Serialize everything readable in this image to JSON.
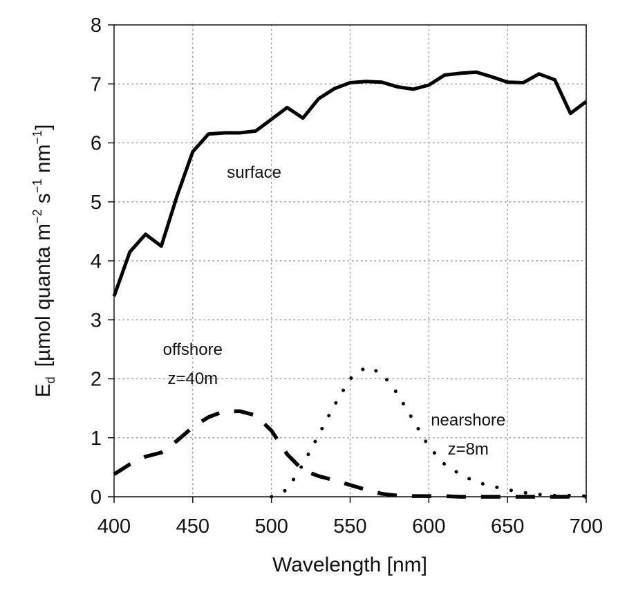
{
  "chart_data": {
    "type": "line",
    "xlabel": "Wavelength [nm]",
    "ylabel": {
      "symbol": "E",
      "subscript": "d",
      "unit_prefix": "[µmol quanta m",
      "exp_m": "−2",
      "unit_s": " s",
      "exp_s": "−1",
      "unit_nm": " nm",
      "exp_nm": "−1",
      "unit_close": "]"
    },
    "xlim": [
      400,
      700
    ],
    "ylim": [
      0,
      8
    ],
    "x_ticks": [
      400,
      450,
      500,
      550,
      600,
      650,
      700
    ],
    "y_ticks": [
      0,
      1,
      2,
      3,
      4,
      5,
      6,
      7,
      8
    ],
    "grid": true,
    "series": [
      {
        "name": "surface",
        "style": "solid",
        "x": [
          400,
          410,
          420,
          430,
          440,
          450,
          460,
          470,
          480,
          490,
          500,
          510,
          520,
          530,
          540,
          550,
          560,
          570,
          580,
          590,
          600,
          610,
          620,
          630,
          640,
          650,
          660,
          670,
          680,
          690,
          700
        ],
        "y": [
          3.4,
          4.15,
          4.45,
          4.25,
          5.1,
          5.85,
          6.15,
          6.17,
          6.17,
          6.2,
          6.4,
          6.6,
          6.42,
          6.75,
          6.92,
          7.02,
          7.04,
          7.03,
          6.95,
          6.91,
          6.98,
          7.15,
          7.18,
          7.2,
          7.12,
          7.03,
          7.02,
          7.17,
          7.07,
          6.5,
          6.7
        ]
      },
      {
        "name": "offshore z=40m",
        "style": "dashed",
        "x": [
          400,
          410,
          420,
          430,
          440,
          450,
          460,
          470,
          480,
          490,
          500,
          510,
          520,
          530,
          540,
          550,
          560,
          570,
          580,
          590,
          600,
          610,
          620,
          630,
          640,
          650,
          660,
          670,
          680,
          690,
          700
        ],
        "y": [
          0.38,
          0.55,
          0.68,
          0.75,
          0.95,
          1.18,
          1.35,
          1.45,
          1.45,
          1.38,
          1.12,
          0.72,
          0.45,
          0.35,
          0.28,
          0.2,
          0.12,
          0.05,
          0.02,
          0.01,
          0.01,
          0.01,
          0.0,
          0.0,
          0.0,
          0.0,
          0.0,
          0.0,
          0.0,
          0.0,
          0.0
        ]
      },
      {
        "name": "nearshore z=8m",
        "style": "dotted",
        "x": [
          500,
          510,
          520,
          530,
          540,
          550,
          560,
          570,
          580,
          590,
          600,
          610,
          620,
          630,
          640,
          650,
          660,
          670,
          680,
          690,
          700
        ],
        "y": [
          0.0,
          0.12,
          0.55,
          1.05,
          1.55,
          2.0,
          2.2,
          2.1,
          1.75,
          1.3,
          0.85,
          0.55,
          0.38,
          0.25,
          0.18,
          0.12,
          0.07,
          0.04,
          0.02,
          0.02,
          0.01
        ]
      }
    ],
    "annotations": [
      {
        "series": "surface",
        "lines": [
          "surface"
        ],
        "x": 489,
        "y": 5.5
      },
      {
        "series": "offshore",
        "lines": [
          "offshore",
          "z=40m"
        ],
        "x": 450,
        "y": 2.5
      },
      {
        "series": "nearshore",
        "lines": [
          "nearshore",
          "z=8m"
        ],
        "x": 625,
        "y": 1.3
      }
    ]
  }
}
